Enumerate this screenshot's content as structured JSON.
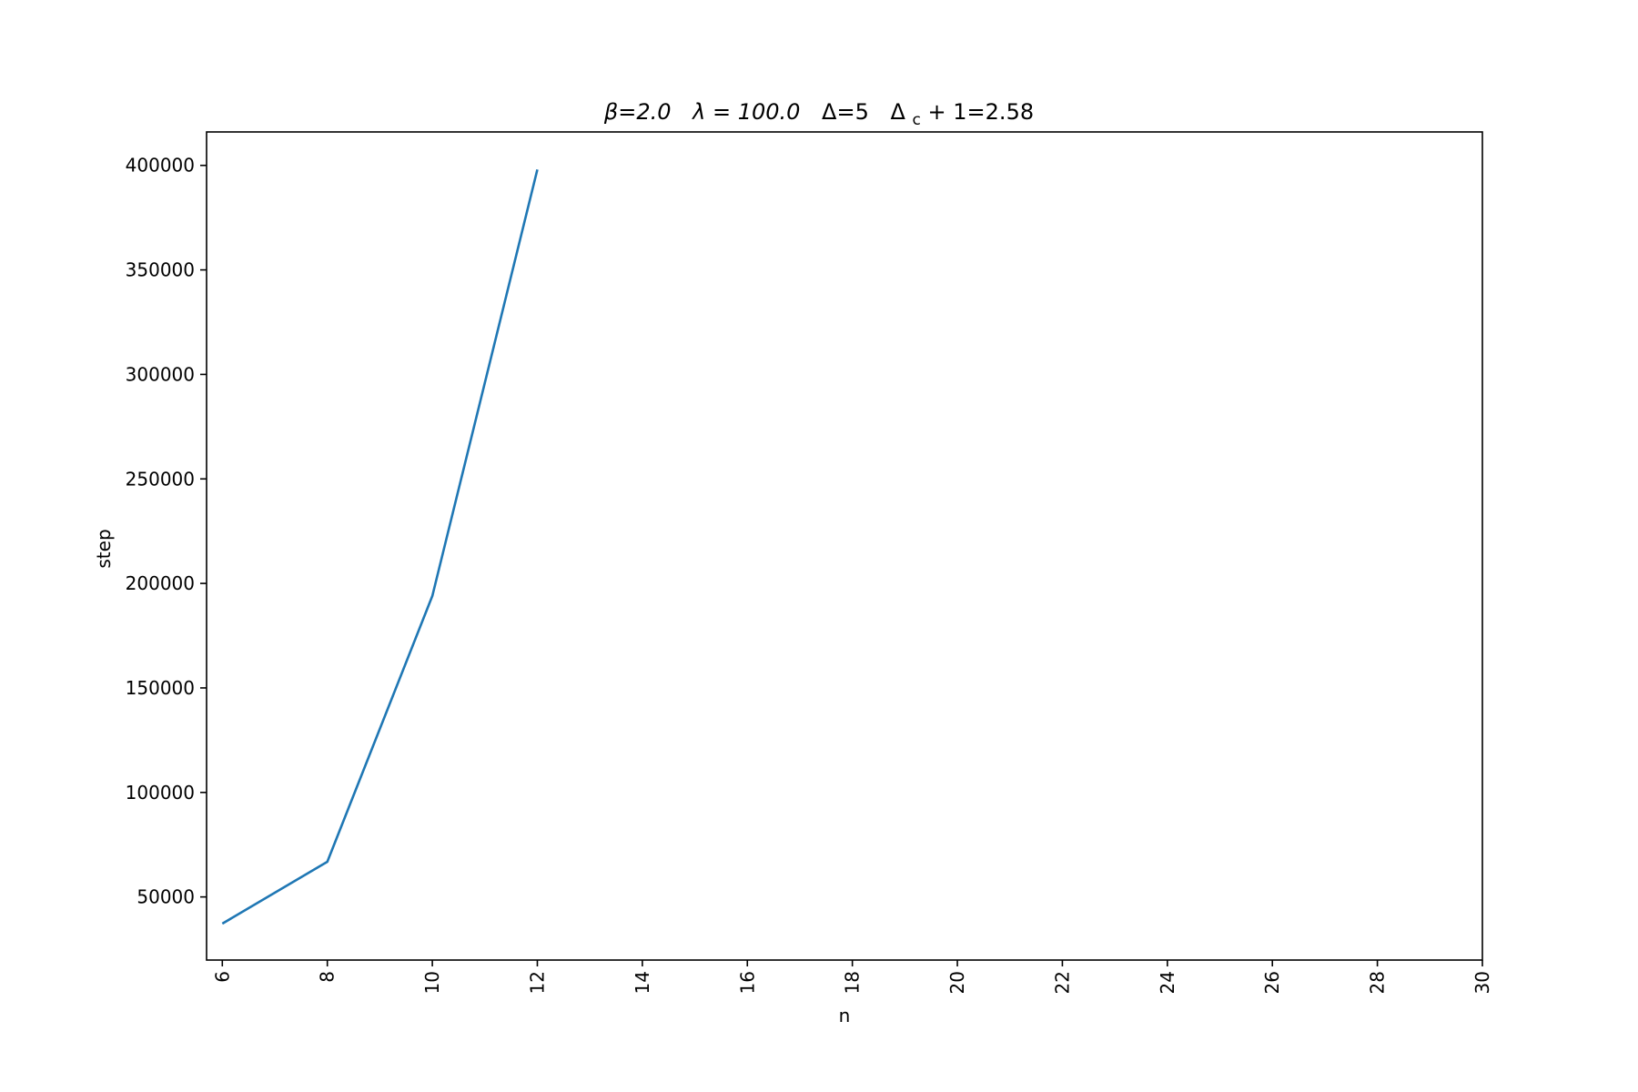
{
  "chart_data": {
    "type": "line",
    "title": "β=2.0   λ = 100.0   Δ=5   Δc + 1=2.58",
    "title_parts": {
      "beta": "β=2.0",
      "lambda": "λ = 100.0",
      "delta": "Δ=5",
      "delta_c_symbol": "Δ",
      "delta_c_sub": "c",
      "delta_c_rest": " + 1=2.58"
    },
    "xlabel": "n",
    "ylabel": "step",
    "xlim": [
      5.7,
      30
    ],
    "ylim": [
      19800,
      416000
    ],
    "x_ticks": [
      6,
      8,
      10,
      12,
      14,
      16,
      18,
      20,
      22,
      24,
      26,
      28,
      30
    ],
    "y_ticks": [
      50000,
      100000,
      150000,
      200000,
      250000,
      300000,
      350000,
      400000
    ],
    "x_tick_labels": [
      "6",
      "8",
      "10",
      "12",
      "14",
      "16",
      "18",
      "20",
      "22",
      "24",
      "26",
      "28",
      "30"
    ],
    "y_tick_labels": [
      "50000",
      "100000",
      "150000",
      "200000",
      "250000",
      "300000",
      "350000",
      "400000"
    ],
    "grid": false,
    "series": [
      {
        "color": "#1f77b4",
        "x": [
          6,
          8,
          10,
          12
        ],
        "y": [
          37200,
          66800,
          194000,
          398000
        ]
      }
    ]
  }
}
